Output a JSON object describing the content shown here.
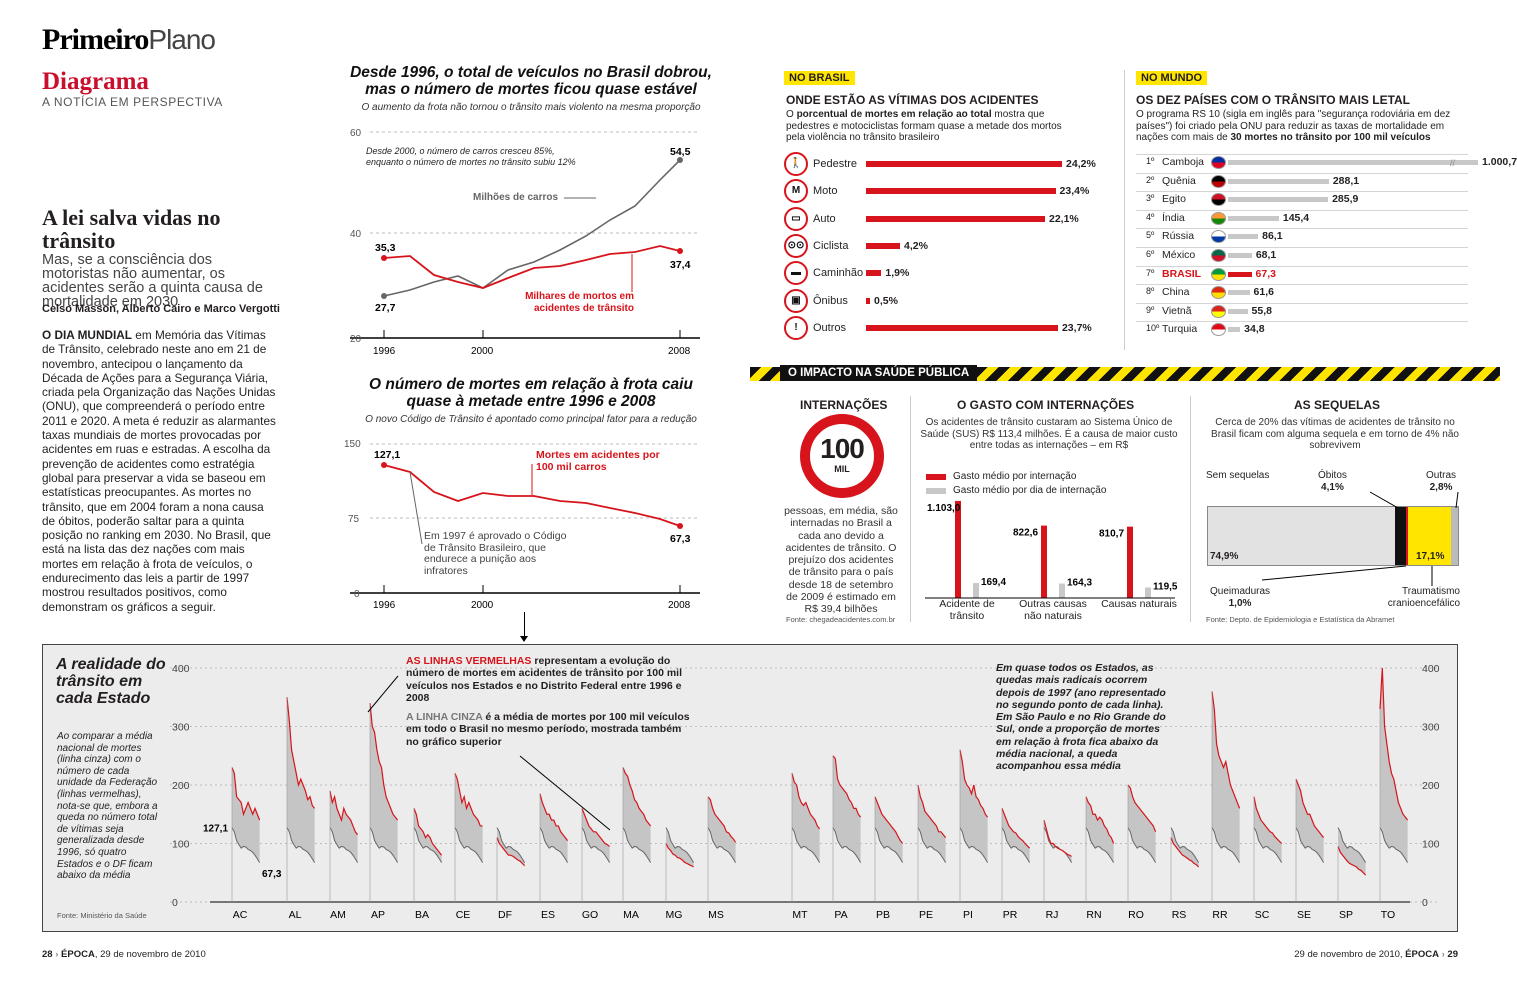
{
  "header": {
    "brand_bold": "Primeiro",
    "brand_light": "Plano",
    "section": "Diagrama",
    "section_sub": "A NOTÍCIA EM PERSPECTIVA"
  },
  "article": {
    "title": "A lei salva vidas no trânsito",
    "deck": "Mas, se a consciência dos motoristas não aumentar, os acidentes serão a quinta causa de mortalidade em 2030",
    "authors": "Celso Masson, Alberto Cairo e Marco Vergotti",
    "lead": "O DIA MUNDIAL",
    "body": " em Memória das Vítimas de Trânsito, celebrado neste ano em 21 de novembro, antecipou o lançamento da Década de Ações para a Segurança Viária, criada pela Organização das Nações Unidas (ONU), que compreenderá o período entre 2011 e 2020. A meta é reduzir as alarmantes taxas mundiais de mortes provocadas por acidentes em ruas e estradas. A escolha da prevenção de acidentes como estratégia global para preservar a vida se baseou em estatísticas preocupantes. As mortes no trânsito, que em 2004 foram a nona causa de óbitos, poderão saltar para a quinta posição no ranking em 2030. No Brasil, que está na lista das dez nações com mais mortes em relação à frota de veículos, o endurecimento das leis a partir de 1997 mostrou resultados positivos, como demonstram os gráficos a seguir."
  },
  "chart1": {
    "title": "Desde 1996, o total de veículos no Brasil dobrou, mas o número de mortes ficou quase estável",
    "subtitle": "O aumento da frota não tornou o trânsito mais violento na mesma proporção",
    "note": "Desde 2000, o número de carros cresceu 85%, enquanto o número de mortes no trânsito subiu 12%",
    "label_cars": "Milhões de carros",
    "label_deaths": "Milhares de mortos em acidentes de trânsito",
    "yticks": [
      "60",
      "40",
      "20"
    ],
    "xticks": [
      "1996",
      "2000",
      "2008"
    ],
    "v_deaths_start": "35,3",
    "v_deaths_end": "37,4",
    "v_cars_start": "27,7",
    "v_cars_end": "54,5"
  },
  "chart2": {
    "title": "O número de mortes em relação à frota caiu quase à metade entre 1996 e 2008",
    "subtitle": "O novo Código de Trânsito é apontado como principal fator para a redução",
    "label": "Mortes em acidentes por 100 mil carros",
    "note": "Em 1997 é aprovado o Código de Trânsito Brasileiro, que endurece a punição aos infratores",
    "yticks": [
      "150",
      "75",
      "0"
    ],
    "xticks": [
      "1996",
      "2000",
      "2008"
    ],
    "v_start": "127,1",
    "v_end": "67,3"
  },
  "brasil": {
    "tag": "NO BRASIL",
    "heading": "ONDE ESTÃO AS VÍTIMAS DOS ACIDENTES",
    "desc_pre": "O ",
    "desc_bold": "porcentual de mortes em relação ao total",
    "desc_post": " mostra que pedestres e motociclistas formam quase a metade dos mortos pela violência no trânsito brasileiro",
    "items": [
      {
        "label": "Pedestre",
        "value": "24,2%",
        "pct": 24.2,
        "icon": "pedestrian-icon"
      },
      {
        "label": "Moto",
        "value": "23,4%",
        "pct": 23.4,
        "icon": "motorcycle-icon"
      },
      {
        "label": "Auto",
        "value": "22,1%",
        "pct": 22.1,
        "icon": "car-icon"
      },
      {
        "label": "Ciclista",
        "value": "4,2%",
        "pct": 4.2,
        "icon": "bicycle-icon"
      },
      {
        "label": "Caminhão",
        "value": "1,9%",
        "pct": 1.9,
        "icon": "truck-icon"
      },
      {
        "label": "Ônibus",
        "value": "0,5%",
        "pct": 0.5,
        "icon": "bus-icon"
      },
      {
        "label": "Outros",
        "value": "23,7%",
        "pct": 23.7,
        "icon": "warning-icon"
      }
    ]
  },
  "mundo": {
    "tag": "NO MUNDO",
    "heading": "OS DEZ PAÍSES COM O TRÂNSITO MAIS LETAL",
    "desc": "O programa RS 10 (sigla em inglês para \"segurança rodoviária em dez países\") foi criado pela ONU para reduzir as taxas de mortalidade em nações com mais de ",
    "desc_bold": "30 mortes no trânsito por 100 mil veículos",
    "items": [
      {
        "rank": "1º",
        "country": "Camboja",
        "value": "1.000,7",
        "v": 1000.7
      },
      {
        "rank": "2º",
        "country": "Quênia",
        "value": "288,1",
        "v": 288.1
      },
      {
        "rank": "3º",
        "country": "Egito",
        "value": "285,9",
        "v": 285.9
      },
      {
        "rank": "4º",
        "country": "Índia",
        "value": "145,4",
        "v": 145.4
      },
      {
        "rank": "5º",
        "country": "Rússia",
        "value": "86,1",
        "v": 86.1
      },
      {
        "rank": "6º",
        "country": "México",
        "value": "68,1",
        "v": 68.1
      },
      {
        "rank": "7º",
        "country": "BRASIL",
        "value": "67,3",
        "v": 67.3
      },
      {
        "rank": "8º",
        "country": "China",
        "value": "61,6",
        "v": 61.6
      },
      {
        "rank": "9º",
        "country": "Vietnã",
        "value": "55,8",
        "v": 55.8
      },
      {
        "rank": "10º",
        "country": "Turquia",
        "value": "34,8",
        "v": 34.8
      }
    ]
  },
  "impacto": {
    "banner": "O IMPACTO NA SAÚDE PÚBLICA",
    "intern": {
      "heading": "INTERNAÇÕES",
      "sign_num": "100",
      "sign_unit": "MIL",
      "text": "pessoas, em média, são internadas no Brasil a cada ano devido a acidentes de trânsito. O prejuízo dos acidentes de trânsito para o país desde 18 de setembro de 2009 é estimado em R$ 39,4 bilhões",
      "source": "Fonte: chegadeacidentes.com.br"
    },
    "gasto": {
      "heading": "O GASTO COM INTERNAÇÕES",
      "text": "Os acidentes de trânsito custaram ao Sistema Único de Saúde (SUS) R$ 113,4 milhões. É a causa de maior custo entre todas as internações – em R$",
      "leg1": "Gasto médio por internação",
      "leg2": "Gasto médio por dia de internação",
      "groups": [
        {
          "label": "Acidente de trânsito",
          "v1": "1.103,0",
          "v2": "169,4",
          "n1": 1103,
          "n2": 169.4
        },
        {
          "label": "Outras causas não naturais",
          "v1": "822,6",
          "v2": "164,3",
          "n1": 822.6,
          "n2": 164.3
        },
        {
          "label": "Causas naturais",
          "v1": "810,7",
          "v2": "119,5",
          "n1": 810.7,
          "n2": 119.5
        }
      ]
    },
    "sequelas": {
      "heading": "AS SEQUELAS",
      "text": "Cerca de 20% das vítimas de acidentes de trânsito no Brasil ficam com alguma sequela e em torno de 4% não sobrevivem",
      "sem": "Sem sequelas",
      "sem_v": "74,9%",
      "obitos": "Óbitos",
      "obitos_v": "4,1%",
      "outras": "Outras",
      "outras_v": "2,8%",
      "queim": "Queimaduras",
      "queim_v": "1,0%",
      "trauma": "Traumatismo cranioencefálico",
      "trauma_v": "17,1%",
      "source": "Fonte: Depto. de Epidemiologia e Estatística da Abramet"
    }
  },
  "estados": {
    "title": "A realidade do trânsito em cada Estado",
    "desc": "Ao comparar a média nacional de mortes (linha cinza) com o número de cada unidade da Federação (linhas vermelhas), nota-se que, embora a queda no número total de vítimas seja generalizada desde 1996, só quatro Estados e o DF ficam abaixo da média",
    "source": "Fonte: Ministério da Saúde",
    "ann1_bold": "AS LINHAS VERMELHAS",
    "ann1": " representam a evolução do número de mortes em acidentes de trânsito por 100 mil veículos nos Estados e no Distrito Federal entre 1996 e 2008",
    "ann2_bold": "A LINHA CINZA",
    "ann2": " é a média de mortes por 100 mil veículos em todo o Brasil no mesmo período, mostrada também no gráfico superior",
    "ann3": "Em quase todos os Estados, as quedas mais radicais ocorrem depois de 1997 (ano representado no segundo ponto de cada linha). Em São Paulo e no Rio Grande do Sul, onde a proporção de mortes em relação à frota fica abaixo da média nacional, a queda acompanhou essa média",
    "v_start": "127,1",
    "v_end": "67,3",
    "yticks": [
      "400",
      "300",
      "200",
      "100",
      "0"
    ],
    "states": [
      {
        "s": "AC",
        "v": [
          230,
          220,
          180,
          175,
          170,
          150,
          160,
          170,
          160,
          150,
          160,
          150,
          140
        ]
      },
      {
        "s": "AL",
        "v": [
          350,
          310,
          260,
          240,
          220,
          200,
          210,
          200,
          190,
          175,
          180,
          165,
          160
        ]
      },
      {
        "s": "AM",
        "v": [
          190,
          170,
          180,
          160,
          150,
          140,
          160,
          150,
          145,
          140,
          130,
          120,
          115
        ]
      },
      {
        "s": "AP",
        "v": [
          340,
          300,
          290,
          260,
          240,
          230,
          200,
          180,
          170,
          160,
          150,
          145,
          140
        ]
      },
      {
        "s": "BA",
        "v": [
          160,
          150,
          130,
          125,
          120,
          110,
          115,
          110,
          100,
          95,
          90,
          85,
          80
        ]
      },
      {
        "s": "CE",
        "v": [
          220,
          210,
          190,
          170,
          180,
          160,
          170,
          160,
          150,
          145,
          140,
          130,
          130
        ]
      },
      {
        "s": "DF",
        "v": [
          110,
          100,
          95,
          90,
          85,
          80,
          80,
          78,
          75,
          72,
          70,
          66,
          62
        ]
      },
      {
        "s": "ES",
        "v": [
          185,
          170,
          160,
          150,
          150,
          140,
          140,
          130,
          130,
          120,
          115,
          110,
          105
        ]
      },
      {
        "s": "GO",
        "v": [
          160,
          150,
          140,
          130,
          125,
          120,
          120,
          115,
          110,
          105,
          100,
          98,
          95
        ]
      },
      {
        "s": "MA",
        "v": [
          230,
          220,
          215,
          200,
          190,
          175,
          170,
          160,
          155,
          150,
          140,
          135,
          130
        ]
      },
      {
        "s": "MG",
        "v": [
          100,
          92,
          88,
          82,
          80,
          76,
          75,
          72,
          68,
          66,
          64,
          62,
          60
        ]
      },
      {
        "s": "MS",
        "v": [
          180,
          175,
          160,
          150,
          145,
          140,
          135,
          130,
          120,
          118,
          112,
          108,
          102
        ]
      },
      {
        "s": "MT",
        "v": [
          220,
          205,
          200,
          180,
          170,
          165,
          170,
          160,
          150,
          145,
          140,
          130,
          125
        ]
      },
      {
        "s": "PA",
        "v": [
          250,
          245,
          210,
          200,
          195,
          190,
          185,
          175,
          170,
          160,
          160,
          150,
          145
        ]
      },
      {
        "s": "PB",
        "v": [
          180,
          170,
          160,
          150,
          145,
          140,
          135,
          130,
          125,
          120,
          112,
          105,
          100
        ]
      },
      {
        "s": "PE",
        "v": [
          200,
          180,
          170,
          155,
          150,
          145,
          140,
          135,
          130,
          120,
          120,
          115,
          110
        ]
      },
      {
        "s": "PI",
        "v": [
          260,
          240,
          210,
          200,
          195,
          185,
          200,
          180,
          175,
          165,
          160,
          150,
          145
        ]
      },
      {
        "s": "PR",
        "v": [
          160,
          150,
          140,
          130,
          125,
          120,
          118,
          112,
          108,
          105,
          100,
          96,
          92
        ]
      },
      {
        "s": "RJ",
        "v": [
          140,
          125,
          110,
          100,
          100,
          95,
          92,
          90,
          88,
          85,
          82,
          80,
          78
        ]
      },
      {
        "s": "RN",
        "v": [
          180,
          170,
          165,
          150,
          150,
          140,
          145,
          140,
          130,
          125,
          115,
          110,
          100
        ]
      },
      {
        "s": "RO",
        "v": [
          200,
          195,
          180,
          170,
          165,
          160,
          155,
          150,
          145,
          140,
          135,
          130,
          120
        ]
      },
      {
        "s": "RS",
        "v": [
          110,
          100,
          95,
          90,
          85,
          80,
          78,
          75,
          72,
          70,
          66,
          64,
          60
        ]
      },
      {
        "s": "RR",
        "v": [
          360,
          330,
          270,
          250,
          240,
          230,
          240,
          220,
          200,
          190,
          180,
          170,
          160
        ]
      },
      {
        "s": "SC",
        "v": [
          180,
          160,
          150,
          140,
          135,
          130,
          125,
          120,
          118,
          112,
          108,
          104,
          100
        ]
      },
      {
        "s": "SE",
        "v": [
          210,
          200,
          190,
          170,
          160,
          150,
          150,
          140,
          130,
          125,
          120,
          115,
          110
        ]
      },
      {
        "s": "SP",
        "v": [
          95,
          85,
          80,
          75,
          70,
          66,
          64,
          62,
          60,
          56,
          54,
          50,
          46
        ]
      },
      {
        "s": "TO",
        "v": [
          330,
          400,
          300,
          270,
          240,
          220,
          210,
          190,
          170,
          160,
          150,
          145,
          140
        ]
      }
    ],
    "media": [
      127.1,
      120,
      105,
      98,
      92,
      95,
      94,
      90,
      88,
      85,
      80,
      74,
      67.3
    ]
  },
  "footer": {
    "left_page": "28",
    "left_brand": "ÉPOCA",
    "left_date": "29 de novembro de 2010",
    "right_date": "29 de novembro de 2010",
    "right_brand": "ÉPOCA",
    "right_page": "29"
  }
}
